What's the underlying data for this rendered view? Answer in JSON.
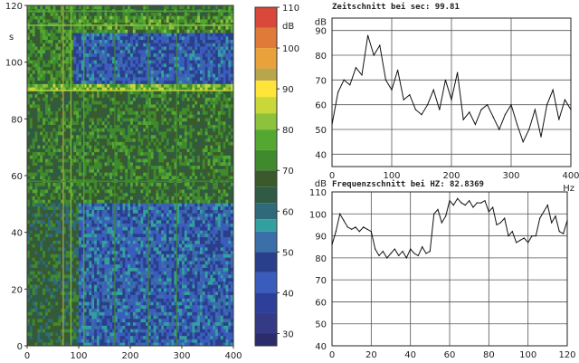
{
  "colors": {
    "background": "#ffffff",
    "axis": "#222222",
    "grid": "#555555",
    "line": "#111111"
  },
  "chart_data": [
    {
      "type": "heatmap",
      "title": "",
      "xlabel": "",
      "ylabel": "",
      "y_unit": "s",
      "xlim": [
        0,
        400
      ],
      "ylim": [
        0,
        120
      ],
      "xticks": [
        "0",
        "100",
        "200",
        "300",
        "400"
      ],
      "yticks": [
        "0",
        "20",
        "40",
        "60",
        "80",
        "100",
        "120"
      ],
      "colorbar": {
        "unit": "dB",
        "range": [
          27,
          110
        ],
        "ticks": [
          "110",
          "100",
          "90",
          "80",
          "70",
          "60",
          "50",
          "40",
          "30"
        ],
        "stops": [
          {
            "db": 110,
            "color": "#d9483a"
          },
          {
            "db": 105,
            "color": "#e07a38"
          },
          {
            "db": 100,
            "color": "#e9a23b"
          },
          {
            "db": 95,
            "color": "#b8a64a"
          },
          {
            "db": 92,
            "color": "#ffe53a"
          },
          {
            "db": 88,
            "color": "#c8d83a"
          },
          {
            "db": 84,
            "color": "#8cc23c"
          },
          {
            "db": 80,
            "color": "#53a832"
          },
          {
            "db": 75,
            "color": "#3f8a2c"
          },
          {
            "db": 70,
            "color": "#3b5a2c"
          },
          {
            "db": 66,
            "color": "#2f5a44"
          },
          {
            "db": 62,
            "color": "#2e6a7a"
          },
          {
            "db": 58,
            "color": "#33a0a0"
          },
          {
            "db": 55,
            "color": "#3b6fa8"
          },
          {
            "db": 50,
            "color": "#2a3f8c"
          },
          {
            "db": 45,
            "color": "#3a5dbd"
          },
          {
            "db": 40,
            "color": "#2e3f9a"
          },
          {
            "db": 35,
            "color": "#343a86"
          },
          {
            "db": 30,
            "color": "#2c2c6a"
          },
          {
            "db": 27,
            "color": "#262657"
          }
        ]
      },
      "regions": [
        {
          "x": [
            0,
            400
          ],
          "y": [
            116,
            120
          ],
          "level": 74
        },
        {
          "x": [
            0,
            400
          ],
          "y": [
            111,
            116
          ],
          "level": 78
        },
        {
          "x": [
            0,
            400
          ],
          "y": [
            93,
            111
          ],
          "level": 52
        },
        {
          "x": [
            0,
            400
          ],
          "y": [
            90,
            93
          ],
          "level": 84
        },
        {
          "x": [
            0,
            400
          ],
          "y": [
            51,
            90
          ],
          "level": 74
        },
        {
          "x": [
            0,
            400
          ],
          "y": [
            0,
            51
          ],
          "level": 53
        },
        {
          "x": [
            0,
            100
          ],
          "y": [
            0,
            51
          ],
          "level": 70
        },
        {
          "x": [
            0,
            90
          ],
          "y": [
            93,
            120
          ],
          "level": 76
        }
      ],
      "vertical_lines": [
        {
          "x": 70,
          "level": 98
        },
        {
          "x": 85,
          "level": 86
        },
        {
          "x": 110,
          "level": 80
        },
        {
          "x": 170,
          "level": 78
        },
        {
          "x": 235,
          "level": 78
        },
        {
          "x": 290,
          "level": 76
        }
      ],
      "horizontal_lines": [
        {
          "y": 90,
          "level": 90
        },
        {
          "y": 113,
          "level": 86
        },
        {
          "y": 118,
          "level": 82
        },
        {
          "y": 58,
          "level": 78
        }
      ]
    },
    {
      "type": "line",
      "title": "Zeitschnitt bei sec: 99.81",
      "ylabel": "dB",
      "xlim": [
        0,
        400
      ],
      "ylim": [
        35,
        95
      ],
      "xticks": [
        0,
        100,
        200,
        300,
        400
      ],
      "yticks": [
        40,
        50,
        60,
        70,
        80,
        90
      ],
      "grid": true,
      "series": [
        {
          "x": [
            0,
            10,
            20,
            30,
            40,
            50,
            60,
            70,
            80,
            90,
            100,
            110,
            120,
            130,
            140,
            150,
            160,
            170,
            180,
            190,
            200,
            210,
            220,
            230,
            240,
            250,
            260,
            270,
            280,
            290,
            300,
            310,
            320,
            330,
            340,
            350,
            360,
            370,
            380,
            390,
            400
          ],
          "values": [
            52,
            65,
            70,
            68,
            75,
            72,
            88,
            80,
            84,
            70,
            66,
            74,
            62,
            64,
            58,
            56,
            60,
            66,
            58,
            70,
            62,
            73,
            54,
            57,
            52,
            58,
            60,
            55,
            50,
            56,
            60,
            52,
            45,
            50,
            58,
            47,
            60,
            66,
            54,
            62,
            58
          ]
        }
      ]
    },
    {
      "type": "line",
      "title": "Frequenzschnitt bei HZ: 82.8369",
      "xlabel": "Hz",
      "ylabel": "dB",
      "xlim": [
        0,
        120
      ],
      "ylim": [
        40,
        110
      ],
      "xticks": [
        0,
        20,
        40,
        60,
        80,
        100,
        120
      ],
      "yticks": [
        40,
        50,
        60,
        70,
        80,
        90,
        100,
        110
      ],
      "grid": true,
      "series": [
        {
          "x": [
            0,
            2,
            4,
            6,
            8,
            10,
            12,
            14,
            16,
            18,
            20,
            22,
            24,
            26,
            28,
            30,
            32,
            34,
            36,
            38,
            40,
            42,
            44,
            46,
            48,
            50,
            52,
            54,
            56,
            58,
            60,
            62,
            64,
            66,
            68,
            70,
            72,
            74,
            76,
            78,
            80,
            82,
            84,
            86,
            88,
            90,
            92,
            94,
            96,
            98,
            100,
            102,
            104,
            106,
            108,
            110,
            112,
            114,
            116,
            118,
            120
          ],
          "values": [
            86,
            92,
            100,
            97,
            94,
            93,
            94,
            92,
            94,
            93,
            92,
            84,
            81,
            83,
            80,
            82,
            84,
            81,
            83,
            80,
            84,
            82,
            81,
            85,
            82,
            83,
            100,
            102,
            96,
            99,
            106,
            104,
            107,
            105,
            104,
            106,
            103,
            105,
            105,
            106,
            101,
            103,
            95,
            96,
            98,
            90,
            92,
            87,
            88,
            89,
            87,
            90,
            90,
            98,
            101,
            104,
            96,
            99,
            92,
            91,
            97
          ]
        }
      ]
    }
  ]
}
